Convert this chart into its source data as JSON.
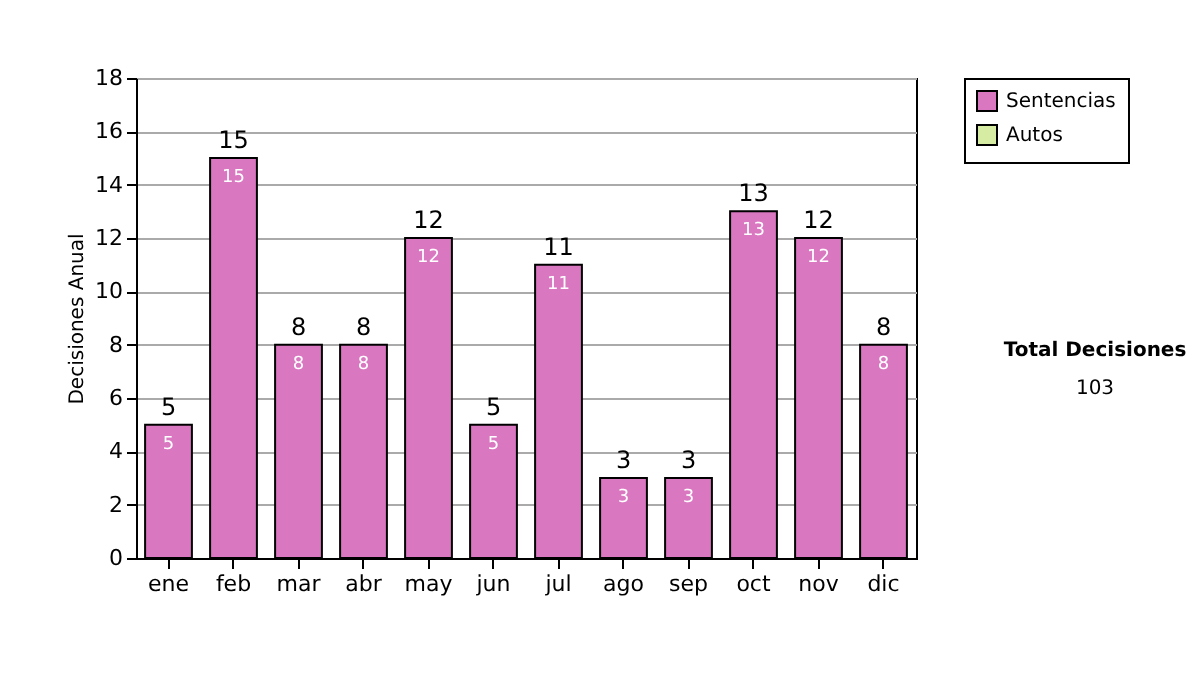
{
  "chart_data": {
    "type": "bar",
    "ylabel": "Decisiones Anual",
    "categories": [
      "ene",
      "feb",
      "mar",
      "abr",
      "may",
      "jun",
      "jul",
      "ago",
      "sep",
      "oct",
      "nov",
      "dic"
    ],
    "series": [
      {
        "name": "Sentencias",
        "color": "#d977c0",
        "values": [
          5,
          15,
          8,
          8,
          12,
          5,
          11,
          3,
          3,
          13,
          12,
          8
        ]
      },
      {
        "name": "Autos",
        "color": "#d6eca2",
        "values": [
          null,
          null,
          null,
          null,
          null,
          null,
          null,
          null,
          null,
          null,
          null,
          null
        ]
      }
    ],
    "data_labels": true,
    "totals": [
      "5",
      "15",
      "8",
      "8",
      "12",
      "5",
      "11",
      "3",
      "3",
      "13",
      "12",
      "8"
    ],
    "ylim": [
      0,
      18
    ],
    "yticks": [
      0,
      2,
      4,
      6,
      8,
      10,
      12,
      14,
      16,
      18
    ],
    "grid": "y",
    "legend": "right",
    "annotations": [
      "Total Decisiones",
      "103"
    ]
  }
}
